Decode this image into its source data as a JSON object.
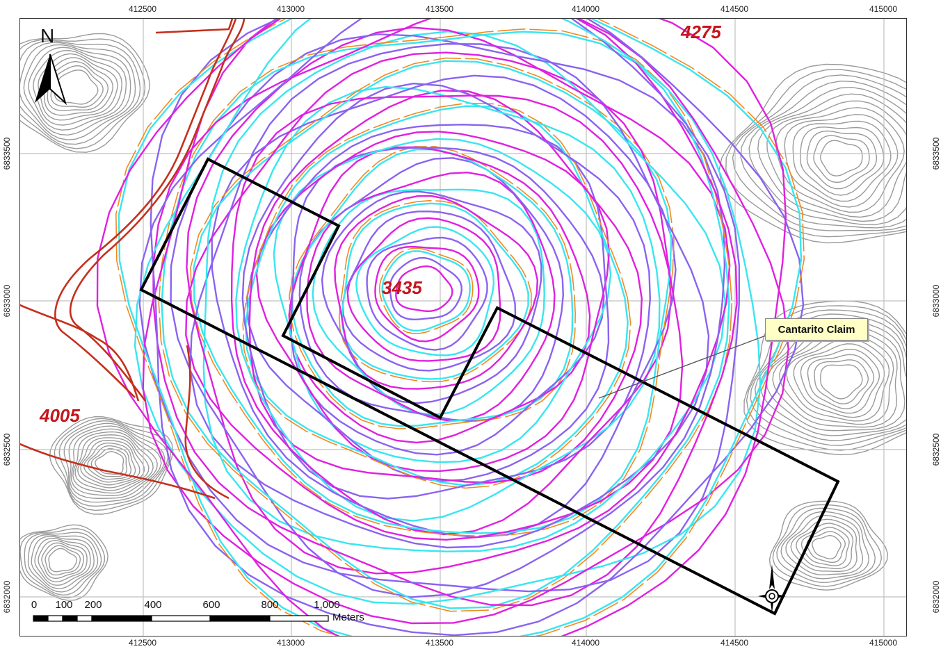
{
  "map": {
    "x_ticks": [
      "412500",
      "413000",
      "413500",
      "414000",
      "414500",
      "415000"
    ],
    "y_ticks": [
      "6833500",
      "6833000",
      "6832500",
      "6832000"
    ],
    "elevation_labels": {
      "top_right": "4275",
      "center": "3435",
      "left": "4005"
    },
    "callout_label": "Cantarito Claim",
    "north_label": "N",
    "scale": {
      "values": [
        "0",
        "100",
        "200",
        "400",
        "600",
        "800",
        "1,000"
      ],
      "units": "Meters"
    },
    "colors": {
      "contour_gray": "#9a9a9a",
      "pit_magenta": "#e020e0",
      "pit_blue": "#8a63f0",
      "pit_cyan": "#38e6f0",
      "bench_orange": "#f08a20",
      "road_red": "#c4301c",
      "claim_outline": "#000000",
      "grid": "#c0c0c0"
    }
  }
}
